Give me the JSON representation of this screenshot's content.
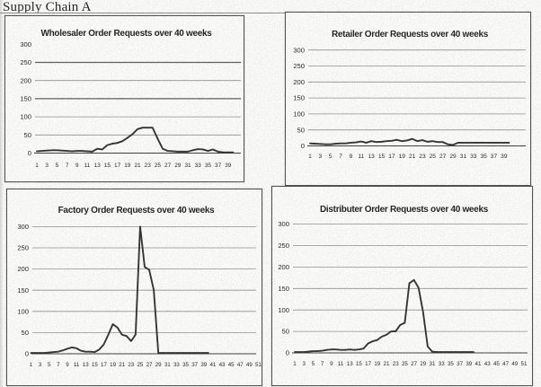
{
  "heading": {
    "title": "Supply Chain A"
  },
  "chart_data": [
    {
      "id": "wholesaler",
      "type": "line",
      "title": "Wholesaler Order Requests over 40 weeks",
      "xlabel": "",
      "ylabel": "",
      "ylim": [
        0,
        300
      ],
      "y_tick_step": 50,
      "y_tick_labels": [
        "300",
        "250",
        "200",
        "150",
        "100",
        "50",
        "0"
      ],
      "x_tick_labels": [
        "1",
        "3",
        "5",
        "7",
        "9",
        "11",
        "13",
        "15",
        "17",
        "19",
        "21",
        "23",
        "25",
        "27",
        "29",
        "31",
        "33",
        "35",
        "37",
        "39"
      ],
      "x": [
        1,
        2,
        3,
        4,
        5,
        6,
        7,
        8,
        9,
        10,
        11,
        12,
        13,
        14,
        15,
        16,
        17,
        18,
        19,
        20,
        21,
        22,
        23,
        24,
        25,
        26,
        27,
        28,
        29,
        30,
        31,
        32,
        33,
        34,
        35,
        36,
        37,
        38,
        39,
        40
      ],
      "values": [
        5,
        6,
        7,
        8,
        8,
        7,
        6,
        5,
        6,
        6,
        5,
        4,
        12,
        10,
        22,
        26,
        28,
        33,
        42,
        52,
        66,
        70,
        70,
        70,
        40,
        12,
        6,
        5,
        4,
        4,
        4,
        8,
        11,
        10,
        6,
        10,
        4,
        2,
        2,
        2
      ],
      "grid": "horizontal",
      "legend": "none",
      "line_color": "#2e2e2c"
    },
    {
      "id": "retailer",
      "type": "line",
      "title": "Retailer Order Requests over 40 weeks",
      "xlabel": "",
      "ylabel": "",
      "ylim": [
        0,
        300
      ],
      "y_tick_step": 50,
      "y_tick_labels": [
        "300",
        "250",
        "200",
        "150",
        "100",
        "50",
        "0"
      ],
      "x_tick_labels": [
        "1",
        "3",
        "5",
        "7",
        "9",
        "11",
        "13",
        "15",
        "17",
        "19",
        "21",
        "23",
        "25",
        "27",
        "29",
        "31",
        "33",
        "35",
        "37",
        "39"
      ],
      "x": [
        1,
        2,
        3,
        4,
        5,
        6,
        7,
        8,
        9,
        10,
        11,
        12,
        13,
        14,
        15,
        16,
        17,
        18,
        19,
        20,
        21,
        22,
        23,
        24,
        25,
        26,
        27,
        28,
        29,
        30,
        31,
        32,
        33,
        34,
        35,
        36,
        37,
        38,
        39,
        40
      ],
      "values": [
        8,
        7,
        6,
        5,
        5,
        7,
        8,
        8,
        10,
        11,
        14,
        10,
        15,
        12,
        13,
        15,
        16,
        19,
        15,
        17,
        22,
        15,
        18,
        13,
        15,
        12,
        12,
        5,
        3,
        10,
        10,
        10,
        10,
        10,
        10,
        10,
        10,
        10,
        10,
        10
      ],
      "grid": "horizontal",
      "legend": "none",
      "line_color": "#2e2e2c"
    },
    {
      "id": "factory",
      "type": "line",
      "title": "Factory Order Requests over 40 weeks",
      "xlabel": "",
      "ylabel": "",
      "ylim": [
        0,
        300
      ],
      "y_tick_step": 50,
      "y_tick_labels": [
        "300",
        "250",
        "200",
        "150",
        "100",
        "50",
        "0"
      ],
      "x_tick_labels": [
        "1",
        "3",
        "5",
        "7",
        "9",
        "11",
        "13",
        "15",
        "17",
        "19",
        "21",
        "23",
        "25",
        "27",
        "29",
        "31",
        "33",
        "35",
        "37",
        "39",
        "41",
        "43",
        "45",
        "47",
        "49",
        "51"
      ],
      "x": [
        1,
        2,
        3,
        4,
        5,
        6,
        7,
        8,
        9,
        10,
        11,
        12,
        13,
        14,
        15,
        16,
        17,
        18,
        19,
        20,
        21,
        22,
        23,
        24,
        25,
        26,
        27,
        28,
        29,
        30,
        31,
        32,
        33,
        34,
        35,
        36,
        37,
        38,
        39,
        40
      ],
      "values": [
        2,
        2,
        2,
        2,
        3,
        4,
        5,
        8,
        12,
        15,
        13,
        7,
        5,
        5,
        4,
        10,
        22,
        45,
        70,
        62,
        45,
        42,
        30,
        45,
        300,
        205,
        198,
        150,
        2,
        2,
        2,
        2,
        2,
        2,
        2,
        2,
        2,
        2,
        2,
        2
      ],
      "grid": "horizontal",
      "legend": "none",
      "line_color": "#2e2e2c"
    },
    {
      "id": "distributer",
      "type": "line",
      "title": "Distributer Order Requests over 40 weeks",
      "xlabel": "",
      "ylabel": "",
      "ylim": [
        0,
        300
      ],
      "y_tick_step": 50,
      "y_tick_labels": [
        "300",
        "250",
        "200",
        "150",
        "100",
        "50",
        "0"
      ],
      "x_tick_labels": [
        "1",
        "3",
        "5",
        "7",
        "9",
        "11",
        "13",
        "15",
        "17",
        "19",
        "21",
        "23",
        "25",
        "27",
        "29",
        "31",
        "33",
        "35",
        "37",
        "39",
        "41",
        "43",
        "45",
        "47",
        "49",
        "51"
      ],
      "x": [
        1,
        2,
        3,
        4,
        5,
        6,
        7,
        8,
        9,
        10,
        11,
        12,
        13,
        14,
        15,
        16,
        17,
        18,
        19,
        20,
        21,
        22,
        23,
        24,
        25,
        26,
        27,
        28,
        29,
        30,
        31,
        32,
        33,
        34,
        35,
        36,
        37,
        38,
        39,
        40
      ],
      "values": [
        2,
        2,
        2,
        3,
        4,
        4,
        5,
        7,
        8,
        8,
        7,
        7,
        8,
        7,
        8,
        10,
        22,
        27,
        30,
        38,
        42,
        50,
        50,
        65,
        70,
        162,
        170,
        152,
        95,
        15,
        3,
        2,
        2,
        2,
        2,
        2,
        2,
        2,
        2,
        2
      ],
      "grid": "horizontal",
      "legend": "none",
      "line_color": "#2e2e2c"
    }
  ],
  "colors": {
    "grid_line": "#8f8f89",
    "grid_line_strong": "#5a5a56",
    "axis_line": "#3a3a38",
    "box_border": "#4d4d4a",
    "text": "#1c1c1a"
  }
}
